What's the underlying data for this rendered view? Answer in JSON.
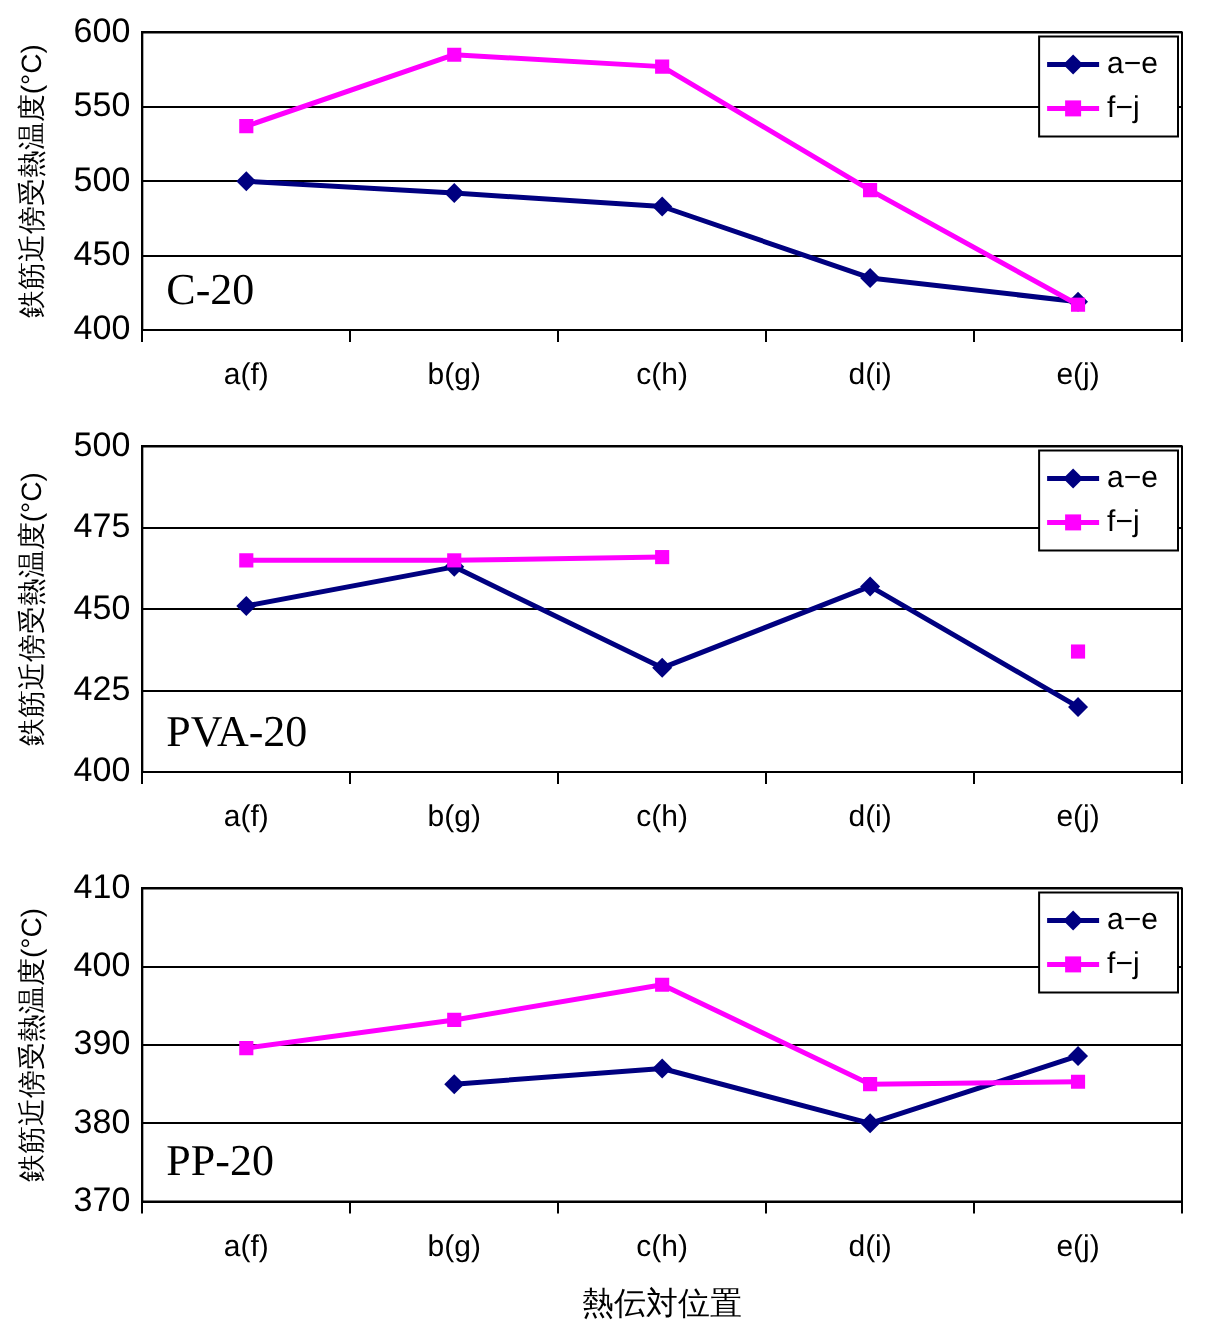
{
  "chart_data": [
    {
      "type": "line",
      "ylabel": "鉄筋近傍受熱温度(°C)",
      "annotations": [
        "C-20"
      ],
      "categories": [
        "a(f)",
        "b(g)",
        "c(h)",
        "d(i)",
        "e(j)"
      ],
      "ylim": [
        400,
        600
      ],
      "yticks": [
        400,
        450,
        500,
        550,
        600
      ],
      "grid": "y",
      "legend": "top right",
      "series": [
        {
          "name": "a−e",
          "color": "#000080",
          "marker": "diamond",
          "values": [
            500,
            492,
            483,
            435,
            419
          ]
        },
        {
          "name": "f−j",
          "color": "#ff00ff",
          "marker": "square",
          "values": [
            537,
            585,
            577,
            494,
            417
          ]
        }
      ]
    },
    {
      "type": "line",
      "ylabel": "鉄筋近傍受熱温度(°C)",
      "annotations": [
        "PVA-20"
      ],
      "categories": [
        "a(f)",
        "b(g)",
        "c(h)",
        "d(i)",
        "e(j)"
      ],
      "ylim": [
        400,
        500
      ],
      "yticks": [
        400,
        425,
        450,
        475,
        500
      ],
      "grid": "y",
      "legend": "top right",
      "series": [
        {
          "name": "a−e",
          "color": "#000080",
          "marker": "diamond",
          "values": [
            451,
            463,
            432,
            457,
            420
          ]
        },
        {
          "name": "f−j",
          "color": "#ff00ff",
          "marker": "square",
          "values": [
            465,
            465,
            466,
            null,
            437
          ]
        }
      ]
    },
    {
      "type": "line",
      "ylabel": "鉄筋近傍受熱温度(°C)",
      "xlabel": "熱伝対位置",
      "annotations": [
        "PP-20"
      ],
      "categories": [
        "a(f)",
        "b(g)",
        "c(h)",
        "d(i)",
        "e(j)"
      ],
      "ylim": [
        370,
        410
      ],
      "yticks": [
        370,
        380,
        390,
        400,
        410
      ],
      "grid": "y",
      "legend": "top right",
      "series": [
        {
          "name": "a−e",
          "color": "#000080",
          "marker": "diamond",
          "values": [
            null,
            385,
            387,
            380,
            388.6
          ]
        },
        {
          "name": "f−j",
          "color": "#ff00ff",
          "marker": "square",
          "values": [
            389.6,
            393.2,
            397.7,
            385,
            385.3
          ]
        }
      ]
    }
  ]
}
